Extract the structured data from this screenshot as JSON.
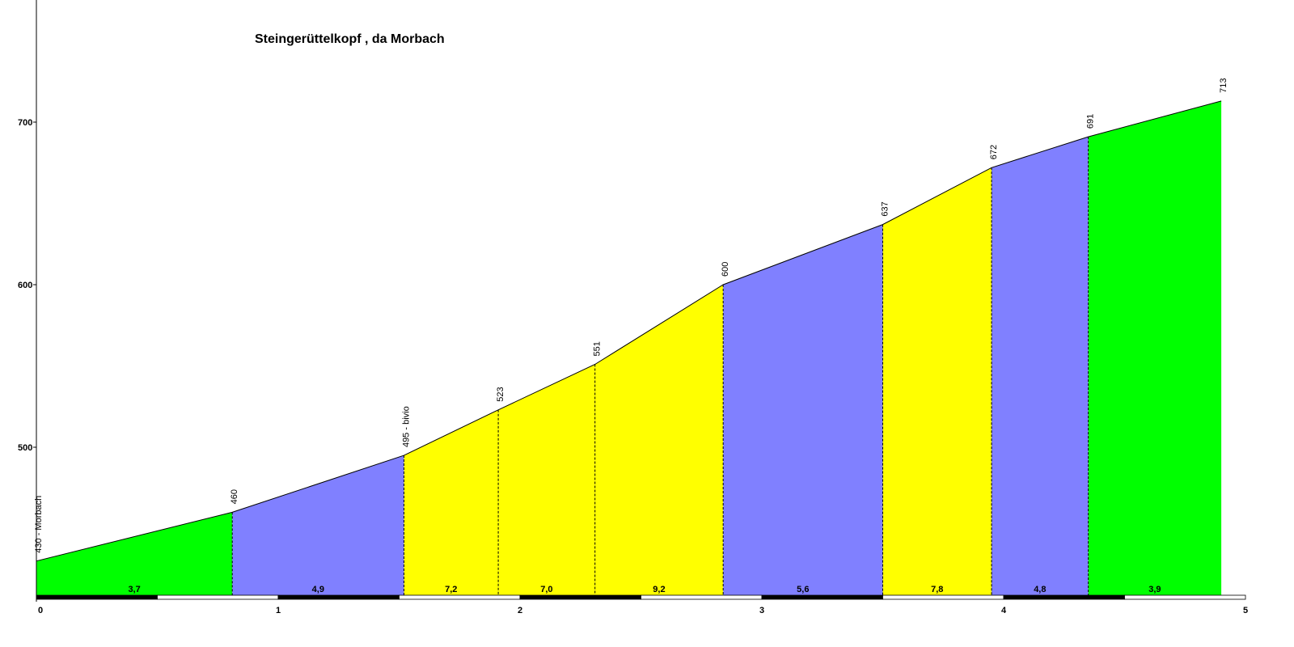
{
  "chart_data": {
    "type": "area",
    "title": "Steingerüttelkopf , da Morbach",
    "xlabel": "",
    "ylabel": "",
    "xlim": [
      0,
      5
    ],
    "ylim": [
      410,
      760
    ],
    "x_ticks": [
      "0",
      "1",
      "2",
      "3",
      "4",
      "5"
    ],
    "y_ticks": [
      "500",
      "600",
      "700"
    ],
    "points": [
      {
        "km": 0.0,
        "elev": 430,
        "label": "430 - Morbach"
      },
      {
        "km": 0.81,
        "elev": 460,
        "label": "460"
      },
      {
        "km": 1.52,
        "elev": 495,
        "label": "495 - bivio"
      },
      {
        "km": 1.91,
        "elev": 523,
        "label": "523"
      },
      {
        "km": 2.31,
        "elev": 551,
        "label": "551"
      },
      {
        "km": 2.84,
        "elev": 600,
        "label": "600"
      },
      {
        "km": 3.5,
        "elev": 637,
        "label": "637"
      },
      {
        "km": 3.95,
        "elev": 672,
        "label": "672"
      },
      {
        "km": 4.35,
        "elev": 691,
        "label": "691"
      },
      {
        "km": 4.9,
        "elev": 713,
        "label": "713"
      }
    ],
    "segments": [
      {
        "gradient": "3,7",
        "color": "#00ff00"
      },
      {
        "gradient": "4,9",
        "color": "#8080ff"
      },
      {
        "gradient": "7,2",
        "color": "#ffff00"
      },
      {
        "gradient": "7,0",
        "color": "#ffff00"
      },
      {
        "gradient": "9,2",
        "color": "#ffff00"
      },
      {
        "gradient": "5,6",
        "color": "#8080ff"
      },
      {
        "gradient": "7,8",
        "color": "#ffff00"
      },
      {
        "gradient": "4,8",
        "color": "#8080ff"
      },
      {
        "gradient": "3,9",
        "color": "#00ff00"
      }
    ],
    "grid": false,
    "legend": "none"
  }
}
